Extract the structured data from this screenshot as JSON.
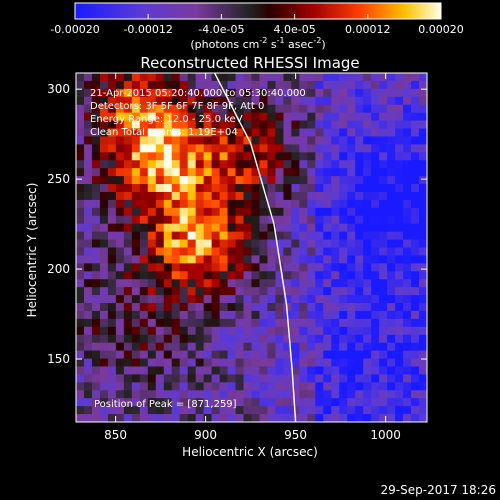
{
  "chart_data": {
    "type": "heatmap",
    "title": "Reconstructed RHESSI Image",
    "xlabel": "Heliocentric X (arcsec)",
    "ylabel": "Heliocentric Y (arcsec)",
    "xlim": [
      828,
      1023
    ],
    "ylim": [
      115,
      309
    ],
    "xticks": [
      850,
      900,
      950,
      1000
    ],
    "xtick_labels": [
      "850",
      "900",
      "950",
      "1000"
    ],
    "yticks": [
      150,
      200,
      250,
      300
    ],
    "ytick_labels": [
      "150",
      "200",
      "250",
      "300"
    ],
    "colorbar": {
      "min": -0.0002,
      "max": 0.0002,
      "ticks": [
        -0.0002,
        -0.00012,
        -4e-05,
        4e-05,
        0.00012,
        0.0002
      ],
      "tick_labels": [
        "-0.00020",
        "-0.00012",
        "-4.0e-05",
        "4.0e-05",
        "0.00012",
        "0.00020"
      ],
      "unit_label": "(photons cm",
      "unit_exp1": "-2",
      "unit_mid": " s",
      "unit_exp2": "-1",
      "unit_mid2": " asec",
      "unit_exp3": "-2",
      "unit_end": ")"
    },
    "annotations": [
      "21-Apr-2015 05:20:40.000 to 05:30:40.000",
      "Detectors: 3F 5F 6F 7F 8F 9F, Att 0",
      "Energy Range: 12.0 - 25.0 keV",
      "Clean  Total counts: 1.19E+04"
    ],
    "peak_label": "Position of Peak = [871,259]",
    "peak": [
      871,
      259
    ],
    "limb_curve": [
      [
        905,
        309
      ],
      [
        925,
        270
      ],
      [
        938,
        225
      ],
      [
        945,
        180
      ],
      [
        948,
        145
      ],
      [
        950,
        115
      ]
    ]
  },
  "footer": {
    "timestamp": "29-Sep-2017 18:26"
  }
}
